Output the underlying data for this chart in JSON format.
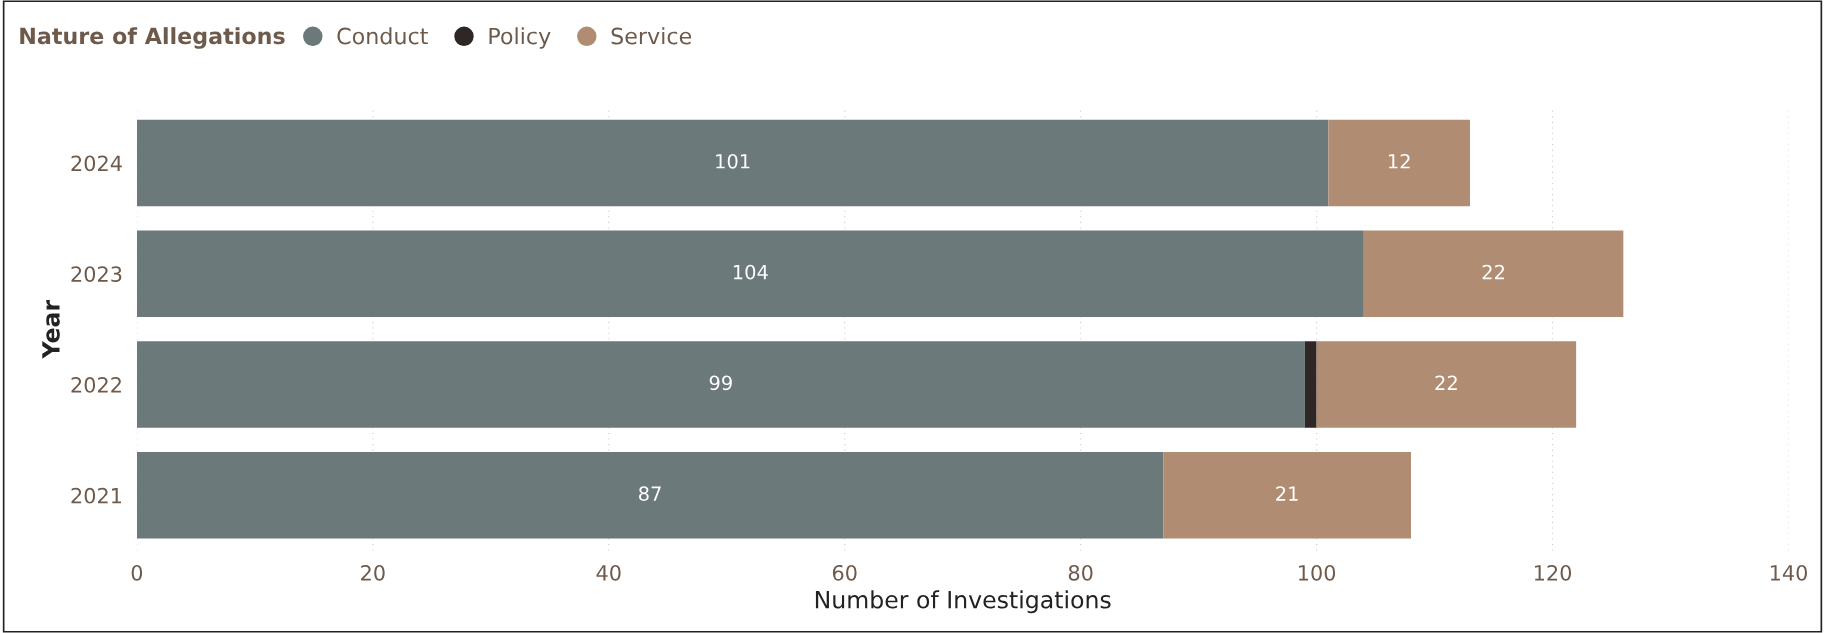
{
  "chart_data": {
    "type": "bar",
    "orientation": "horizontal",
    "stacked": true,
    "xlabel": "Number of Investigations",
    "ylabel": "Year",
    "legend_title": "Nature of Allegations",
    "legend": "top left",
    "grid": "x",
    "categories": [
      "2024",
      "2023",
      "2022",
      "2021"
    ],
    "series": [
      {
        "name": "Conduct",
        "color": "#6b797b",
        "values": [
          101,
          104,
          99,
          87
        ],
        "value_labels": [
          "101",
          "104",
          "99",
          "87"
        ]
      },
      {
        "name": "Policy",
        "color": "#2f2626",
        "values": [
          0,
          0,
          1,
          0
        ],
        "value_labels": [
          null,
          null,
          null,
          null
        ]
      },
      {
        "name": "Service",
        "color": "#b08c72",
        "values": [
          12,
          22,
          22,
          21
        ],
        "value_labels": [
          "12",
          "22",
          "22",
          "21"
        ]
      }
    ],
    "xlim": [
      0,
      140
    ],
    "xticks": [
      0,
      20,
      40,
      60,
      80,
      100,
      120,
      140
    ]
  }
}
